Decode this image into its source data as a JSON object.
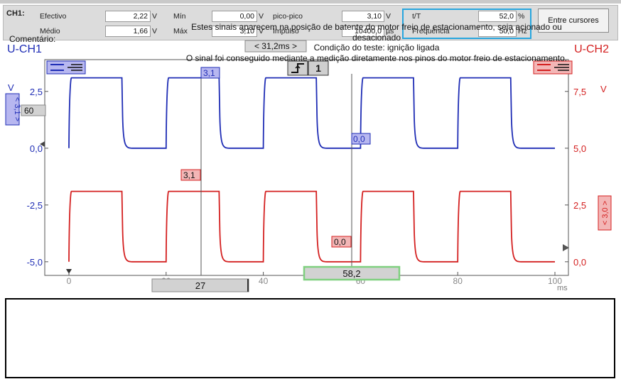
{
  "header": {
    "channel": "CH1:",
    "efectivo": {
      "label": "Efectivo",
      "value": "2,22",
      "unit": "V"
    },
    "medio": {
      "label": "Médio",
      "value": "1,66",
      "unit": "V"
    },
    "min": {
      "label": "Mín",
      "value": "0,00",
      "unit": "V"
    },
    "max": {
      "label": "Máx",
      "value": "3,10",
      "unit": "V"
    },
    "pico": {
      "label": "pico-pico",
      "value": "3,10",
      "unit": "V"
    },
    "impulso": {
      "label": "Impulso",
      "value": "10400,0",
      "unit": "µs"
    },
    "tT": {
      "label": "t/T",
      "value": "52,0",
      "unit": "%"
    },
    "frequencia": {
      "label": "Frequência",
      "value": "50,0",
      "unit": "Hz"
    },
    "cursors_button": "Entre cursores"
  },
  "scope": {
    "ch1_label": "U-CH1",
    "ch2_label": "U-CH2",
    "time_window": "< 31,2ms >",
    "ch1_unit": "V",
    "ch2_unit": "V",
    "x_unit": "ms",
    "trigger_channel": "1",
    "ch1_level_marker": "60",
    "ch1_scale": "< 3,1 >",
    "ch2_scale": "< 3,0 >",
    "ch1_high_cursor": "3,1",
    "ch1_low_cursor": "0,0",
    "ch2_high_cursor": "3,1",
    "ch2_low_cursor": "0,0",
    "cursor1_time": "27",
    "cursor2_time": "58,2",
    "left_ticks": [
      "2,5",
      "0,0",
      "-2,5",
      "-5,0"
    ],
    "right_ticks": [
      "7,5",
      "5,0",
      "2,5",
      "0,0"
    ],
    "x_ticks": [
      "0",
      "20",
      "40",
      "60",
      "80",
      "100"
    ],
    "colors": {
      "ch1": "#1f2db5",
      "ch2": "#d42020",
      "cursor_box": "#7fd07f"
    }
  },
  "chart_data": {
    "type": "line",
    "xlabel": "ms",
    "xlim": [
      0,
      100
    ],
    "period_ms": 20,
    "duty_percent": 52,
    "series": [
      {
        "name": "U-CH1",
        "x": [
          0,
          0.5,
          10.9,
          11.6,
          20,
          20.5,
          30.9,
          31.6,
          40,
          40.5,
          50.9,
          51.6,
          60,
          60.5,
          70.9,
          71.6,
          80,
          80.5,
          90.9,
          91.6,
          100
        ],
        "y": [
          0,
          3.1,
          3.1,
          0,
          0,
          3.1,
          3.1,
          0,
          0,
          3.1,
          3.1,
          0,
          0,
          3.1,
          3.1,
          0,
          0,
          3.1,
          3.1,
          0,
          0
        ],
        "axis": "left"
      },
      {
        "name": "U-CH2",
        "x": [
          0,
          0.5,
          10.9,
          11.6,
          20,
          20.5,
          30.9,
          31.6,
          40,
          40.5,
          50.9,
          51.6,
          60,
          60.5,
          70.9,
          71.6,
          80,
          80.5,
          90.9,
          91.6,
          100
        ],
        "y": [
          0,
          3.1,
          3.1,
          0,
          0,
          3.1,
          3.1,
          0,
          0,
          3.1,
          3.1,
          0,
          0,
          3.1,
          3.1,
          0,
          0,
          3.1,
          3.1,
          0,
          0
        ],
        "axis": "right"
      }
    ],
    "left_axis": {
      "unit": "V",
      "ylim": [
        -5.6,
        3.9
      ]
    },
    "right_axis": {
      "unit": "V",
      "ylim": [
        -0.6,
        8.9
      ]
    }
  },
  "comment": {
    "label": "Comentário:",
    "line1": "Estes sinais aparecem na posição de batente do motor freio de estacionamento, seja acionado ou",
    "line2": "desacionado",
    "line3": "Condição do teste: ignição ligada",
    "line4": "O sinal foi conseguido mediante a medição diretamente nos pinos do motor freio de estacionamento."
  }
}
